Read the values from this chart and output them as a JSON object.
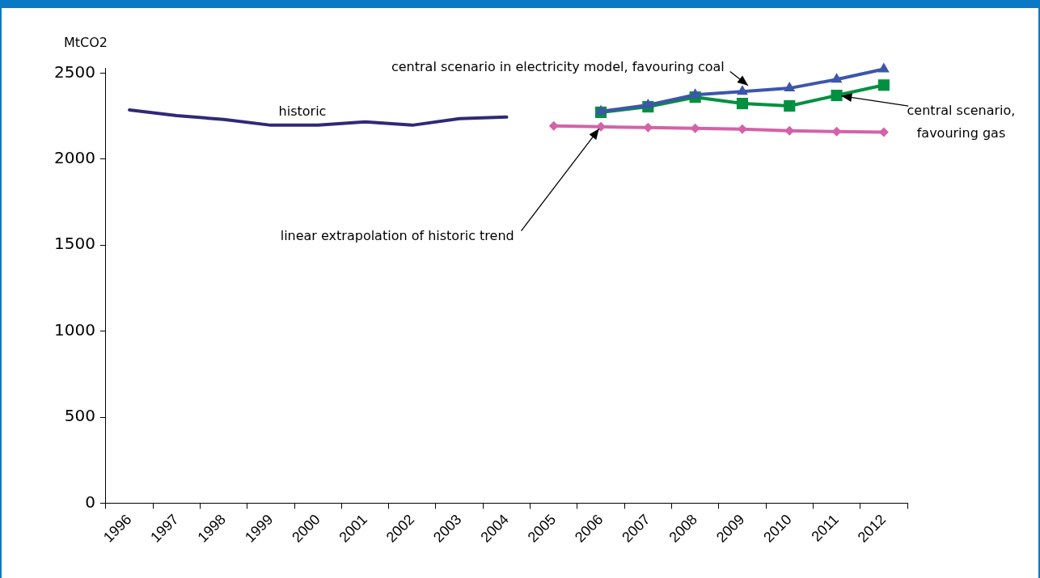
{
  "chart_data": {
    "type": "line",
    "ylabel": "MtCO2",
    "categories": [
      "1996",
      "1997",
      "1998",
      "1999",
      "2000",
      "2001",
      "2002",
      "2003",
      "2004",
      "2005",
      "2006",
      "2007",
      "2008",
      "2009",
      "2010",
      "2011",
      "2012"
    ],
    "series": [
      {
        "color": "#2e2a78",
        "marker": "none",
        "values": [
          2286,
          2253,
          2230,
          2197,
          2197,
          2216,
          2197,
          2235,
          2244,
          null,
          null,
          null,
          null,
          null,
          null,
          null,
          null
        ]
      },
      {
        "color": "#d462a8",
        "marker": "diamond",
        "values": [
          null,
          null,
          null,
          null,
          null,
          null,
          null,
          null,
          null,
          2193,
          2188,
          2183,
          2179,
          2174,
          2165,
          2160,
          2156
        ]
      },
      {
        "color": "#3d56ab",
        "marker": "triangle",
        "values": [
          null,
          null,
          null,
          null,
          null,
          null,
          null,
          null,
          null,
          null,
          2277,
          2314,
          2374,
          2393,
          2412,
          2463,
          2523
        ]
      },
      {
        "color": "#009040",
        "marker": "square",
        "values": [
          null,
          null,
          null,
          null,
          null,
          null,
          null,
          null,
          null,
          null,
          2272,
          2304,
          2360,
          2323,
          2309,
          2370,
          2430
        ]
      }
    ],
    "ylim": [
      0,
      2530
    ],
    "yticks": [
      0,
      500,
      1000,
      1500,
      2000,
      2500
    ],
    "grid": false,
    "legend": false,
    "annotations": [
      {
        "text": "historic",
        "x": "2000",
        "y": 2197
      },
      {
        "text": "central scenario in electricity model, favouring coal",
        "x": "2009",
        "y": 2393
      },
      {
        "text": "central scenario,\nfavouring gas",
        "x": "2011",
        "y": 2370
      },
      {
        "text": "linear extrapolation of historic trend",
        "x": "2006",
        "y": 2188
      }
    ]
  }
}
